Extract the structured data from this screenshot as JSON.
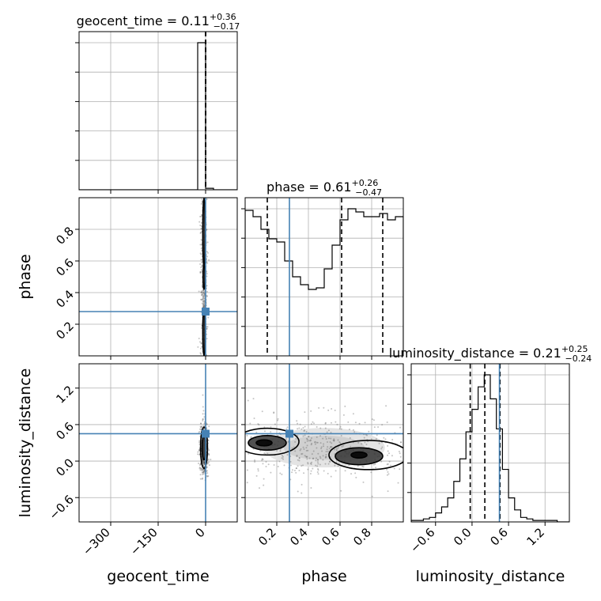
{
  "chart_data": {
    "type": "corner",
    "truths": {
      "geocent_time": 0.0,
      "phase": 0.28,
      "luminosity_distance": 0.45
    },
    "truth_color": "#4682b4",
    "parameters": [
      {
        "name": "geocent_time",
        "label": "geocent_time",
        "title_prefix": "geocent_time = 0.11",
        "title_plus": "+0.36",
        "title_minus": "−0.17",
        "range": [
          -400,
          100
        ],
        "ticks": [
          -300,
          -150,
          0
        ],
        "tick_labels": [
          "−300",
          "−150",
          "0"
        ],
        "quantiles": [
          -0.06,
          0.11,
          0.47
        ],
        "histogram": {
          "bin_edges": [
            -400,
            -375,
            -350,
            -325,
            -300,
            -275,
            -250,
            -225,
            -200,
            -175,
            -150,
            -125,
            -100,
            -75,
            -50,
            -25,
            0,
            25,
            50,
            75,
            100
          ],
          "counts": [
            0,
            0,
            0,
            0,
            0,
            0,
            0,
            0,
            0,
            0,
            0,
            0,
            0,
            0,
            0,
            0.98,
            0.01,
            0,
            0,
            0
          ]
        }
      },
      {
        "name": "phase",
        "label": "phase",
        "title_prefix": "phase = 0.61",
        "title_plus": "+0.26",
        "title_minus": "−0.47",
        "range": [
          0.0,
          1.0
        ],
        "ticks": [
          0.2,
          0.4,
          0.6,
          0.8
        ],
        "tick_labels": [
          "0.2",
          "0.4",
          "0.6",
          "0.8"
        ],
        "quantiles": [
          0.14,
          0.61,
          0.87
        ],
        "histogram": {
          "bin_edges": [
            0.0,
            0.05,
            0.1,
            0.15,
            0.2,
            0.25,
            0.3,
            0.35,
            0.4,
            0.45,
            0.5,
            0.55,
            0.6,
            0.65,
            0.7,
            0.75,
            0.8,
            0.85,
            0.9,
            0.95,
            1.0
          ],
          "counts": [
            0.92,
            0.88,
            0.8,
            0.74,
            0.72,
            0.6,
            0.5,
            0.45,
            0.42,
            0.43,
            0.55,
            0.7,
            0.86,
            0.93,
            0.91,
            0.88,
            0.88,
            0.9,
            0.86,
            0.88
          ]
        }
      },
      {
        "name": "luminosity_distance",
        "label": "luminosity_distance",
        "title_prefix": "luminosity_distance = 0.21",
        "title_plus": "+0.25",
        "title_minus": "−0.24",
        "range": [
          -1.0,
          1.6
        ],
        "ticks": [
          -0.6,
          0.0,
          0.6,
          1.2
        ],
        "tick_labels": [
          "−0.6",
          "0.0",
          "0.6",
          "1.2"
        ],
        "quantiles": [
          -0.03,
          0.21,
          0.46
        ],
        "histogram": {
          "bin_edges": [
            -1.0,
            -0.9,
            -0.8,
            -0.7,
            -0.6,
            -0.5,
            -0.4,
            -0.3,
            -0.2,
            -0.1,
            0.0,
            0.1,
            0.2,
            0.3,
            0.4,
            0.5,
            0.6,
            0.7,
            0.8,
            0.9,
            1.0,
            1.1,
            1.2,
            1.3,
            1.4,
            1.5,
            1.6
          ],
          "counts": [
            0.01,
            0.01,
            0.02,
            0.03,
            0.06,
            0.1,
            0.16,
            0.27,
            0.42,
            0.6,
            0.75,
            0.9,
            0.98,
            0.82,
            0.62,
            0.35,
            0.16,
            0.08,
            0.03,
            0.02,
            0.01,
            0.01,
            0.01,
            0.01,
            0,
            0
          ]
        }
      }
    ],
    "pair_panels": [
      {
        "x": "geocent_time",
        "y": "phase",
        "blob": {
          "cx": -5,
          "cy": 0.5,
          "sx": 5,
          "sy": 0.35
        },
        "contours": [
          {
            "cx": -5,
            "cy": 0.78,
            "rx": 4,
            "ry": 0.22,
            "fill": "#2a2a2a"
          },
          {
            "cx": -5,
            "cy": 0.15,
            "rx": 4,
            "ry": 0.15,
            "fill": "#2a2a2a"
          },
          {
            "cx": -5,
            "cy": 0.5,
            "rx": 3,
            "ry": 0.08,
            "fill": "#4a4a4a"
          }
        ]
      },
      {
        "x": "geocent_time",
        "y": "luminosity_distance",
        "blob": {
          "cx": -5,
          "cy": 0.2,
          "sx": 6,
          "sy": 0.2
        },
        "contours": [
          {
            "cx": -5,
            "cy": 0.22,
            "rx": 11,
            "ry": 0.34,
            "fill": "none"
          },
          {
            "cx": -5,
            "cy": 0.22,
            "rx": 6,
            "ry": 0.2,
            "fill": "#333333"
          }
        ]
      },
      {
        "x": "phase",
        "y": "luminosity_distance",
        "blob": {
          "cx": 0.5,
          "cy": 0.22,
          "sx": 0.32,
          "sy": 0.25
        },
        "contours": [
          {
            "cx": 0.14,
            "cy": 0.32,
            "rx": 0.2,
            "ry": 0.22,
            "fill": "none"
          },
          {
            "cx": 0.78,
            "cy": 0.1,
            "rx": 0.25,
            "ry": 0.24,
            "fill": "none"
          },
          {
            "cx": 0.14,
            "cy": 0.3,
            "rx": 0.12,
            "ry": 0.12,
            "fill": "#333333"
          },
          {
            "cx": 0.72,
            "cy": 0.08,
            "rx": 0.15,
            "ry": 0.14,
            "fill": "#333333"
          },
          {
            "cx": 0.12,
            "cy": 0.3,
            "rx": 0.05,
            "ry": 0.05,
            "fill": "#000000"
          },
          {
            "cx": 0.72,
            "cy": 0.1,
            "rx": 0.05,
            "ry": 0.05,
            "fill": "#000000"
          }
        ]
      }
    ]
  }
}
